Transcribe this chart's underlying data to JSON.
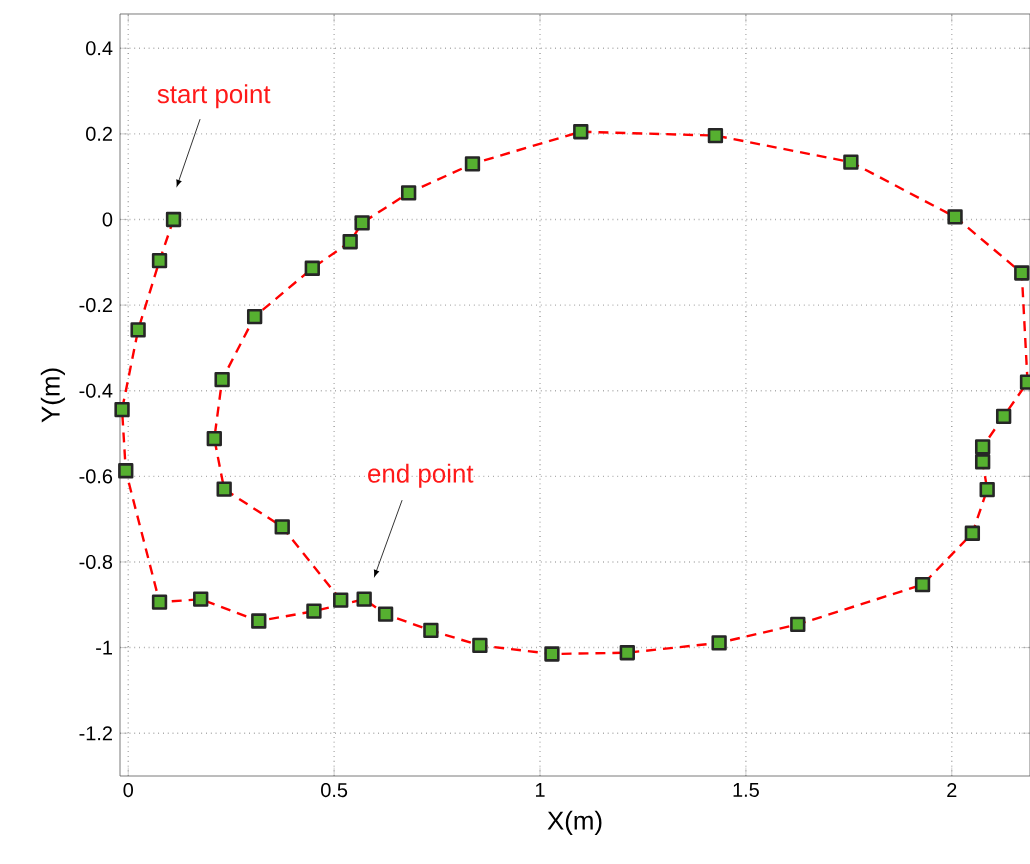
{
  "chart_data": {
    "type": "line",
    "xlabel": "X(m)",
    "ylabel": "Y(m)",
    "xlim": [
      -0.02,
      2.19
    ],
    "ylim": [
      -1.3,
      0.48
    ],
    "xticks": [
      0,
      0.5,
      1,
      1.5,
      2
    ],
    "yticks": [
      -1.2,
      -1,
      -0.8,
      -0.6,
      -0.4,
      -0.2,
      0,
      0.2,
      0.4
    ],
    "grid": true,
    "marker": "square",
    "line_style": "dashed",
    "annotations": [
      "start point",
      "end point"
    ],
    "series": [
      {
        "color": "#ff0000",
        "x": [
          0.11,
          0.076,
          0.024,
          -0.015,
          -0.006,
          0.076,
          0.176,
          0.317,
          0.451,
          0.573,
          0.625,
          0.735,
          0.854,
          1.029,
          1.212,
          1.435,
          1.626,
          1.929,
          2.05,
          2.086,
          2.075,
          2.075,
          2.126,
          2.184,
          2.17,
          2.008,
          1.755,
          1.426,
          1.099,
          0.836,
          0.681,
          0.568,
          0.539,
          0.447,
          0.307,
          0.228,
          0.209,
          0.233,
          0.374,
          0.516
        ],
        "values": [
          0,
          -0.096,
          -0.258,
          -0.444,
          -0.587,
          -0.894,
          -0.887,
          -0.938,
          -0.915,
          -0.887,
          -0.922,
          -0.96,
          -0.995,
          -1.015,
          -1.012,
          -0.989,
          -0.946,
          -0.853,
          -0.733,
          -0.631,
          -0.566,
          -0.531,
          -0.46,
          -0.38,
          -0.125,
          0.006,
          0.134,
          0.196,
          0.205,
          0.13,
          0.062,
          -0.008,
          -0.052,
          -0.114,
          -0.227,
          -0.374,
          -0.512,
          -0.63,
          -0.718,
          -0.889
        ]
      }
    ]
  }
}
